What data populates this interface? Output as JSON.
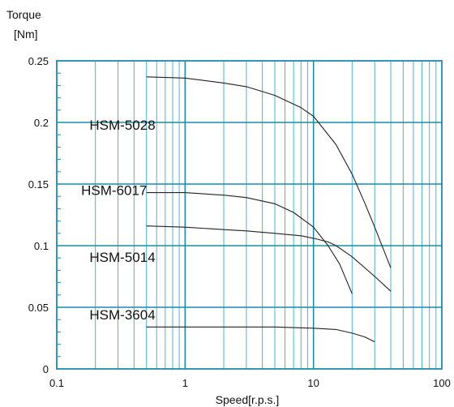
{
  "chart_data": {
    "type": "line",
    "title": "",
    "ylabel_line1": "Torque",
    "ylabel_line2": "[Nm]",
    "xlabel": "Speed[r.p.s.]",
    "xscale": "log",
    "xlim": [
      0.1,
      100
    ],
    "ylim": [
      0,
      0.25
    ],
    "x_ticks": [
      0.1,
      1,
      10,
      100
    ],
    "x_tick_labels": [
      "0.1",
      "1",
      "10",
      "100"
    ],
    "y_ticks": [
      0,
      0.05,
      0.1,
      0.15,
      0.2,
      0.25
    ],
    "y_tick_labels": [
      "0",
      "0.05",
      "0.1",
      "0.15",
      "0.2",
      "0.25"
    ],
    "grid": true,
    "grid_color": "#4fb2cf",
    "frame_color": "#1e8aa8",
    "line_color": "#222222",
    "series": [
      {
        "name": "HSM-5028",
        "x": [
          0.5,
          1,
          2,
          3,
          5,
          8,
          10,
          15,
          20,
          25,
          30,
          40
        ],
        "y": [
          0.237,
          0.236,
          0.232,
          0.229,
          0.222,
          0.212,
          0.205,
          0.182,
          0.158,
          0.135,
          0.115,
          0.082
        ]
      },
      {
        "name": "HSM-6017",
        "x": [
          0.5,
          1,
          2,
          3,
          5,
          7,
          10,
          13,
          16,
          20
        ],
        "y": [
          0.143,
          0.143,
          0.141,
          0.139,
          0.134,
          0.127,
          0.115,
          0.1,
          0.085,
          0.061
        ]
      },
      {
        "name": "HSM-5014",
        "x": [
          0.5,
          1,
          2,
          3,
          5,
          8,
          10,
          13,
          15,
          20,
          30,
          40
        ],
        "y": [
          0.116,
          0.115,
          0.113,
          0.112,
          0.11,
          0.108,
          0.106,
          0.103,
          0.1,
          0.091,
          0.075,
          0.063
        ]
      },
      {
        "name": "HSM-3604",
        "x": [
          0.5,
          1,
          2,
          5,
          10,
          15,
          20,
          25,
          30
        ],
        "y": [
          0.034,
          0.034,
          0.034,
          0.034,
          0.033,
          0.032,
          0.029,
          0.026,
          0.022
        ]
      }
    ],
    "series_label_positions": [
      {
        "series": "HSM-5028",
        "x": 0.18,
        "y": 0.194
      },
      {
        "series": "HSM-6017",
        "x": 0.155,
        "y": 0.141
      },
      {
        "series": "HSM-5014",
        "x": 0.18,
        "y": 0.087
      },
      {
        "series": "HSM-3604",
        "x": 0.18,
        "y": 0.04
      }
    ]
  }
}
